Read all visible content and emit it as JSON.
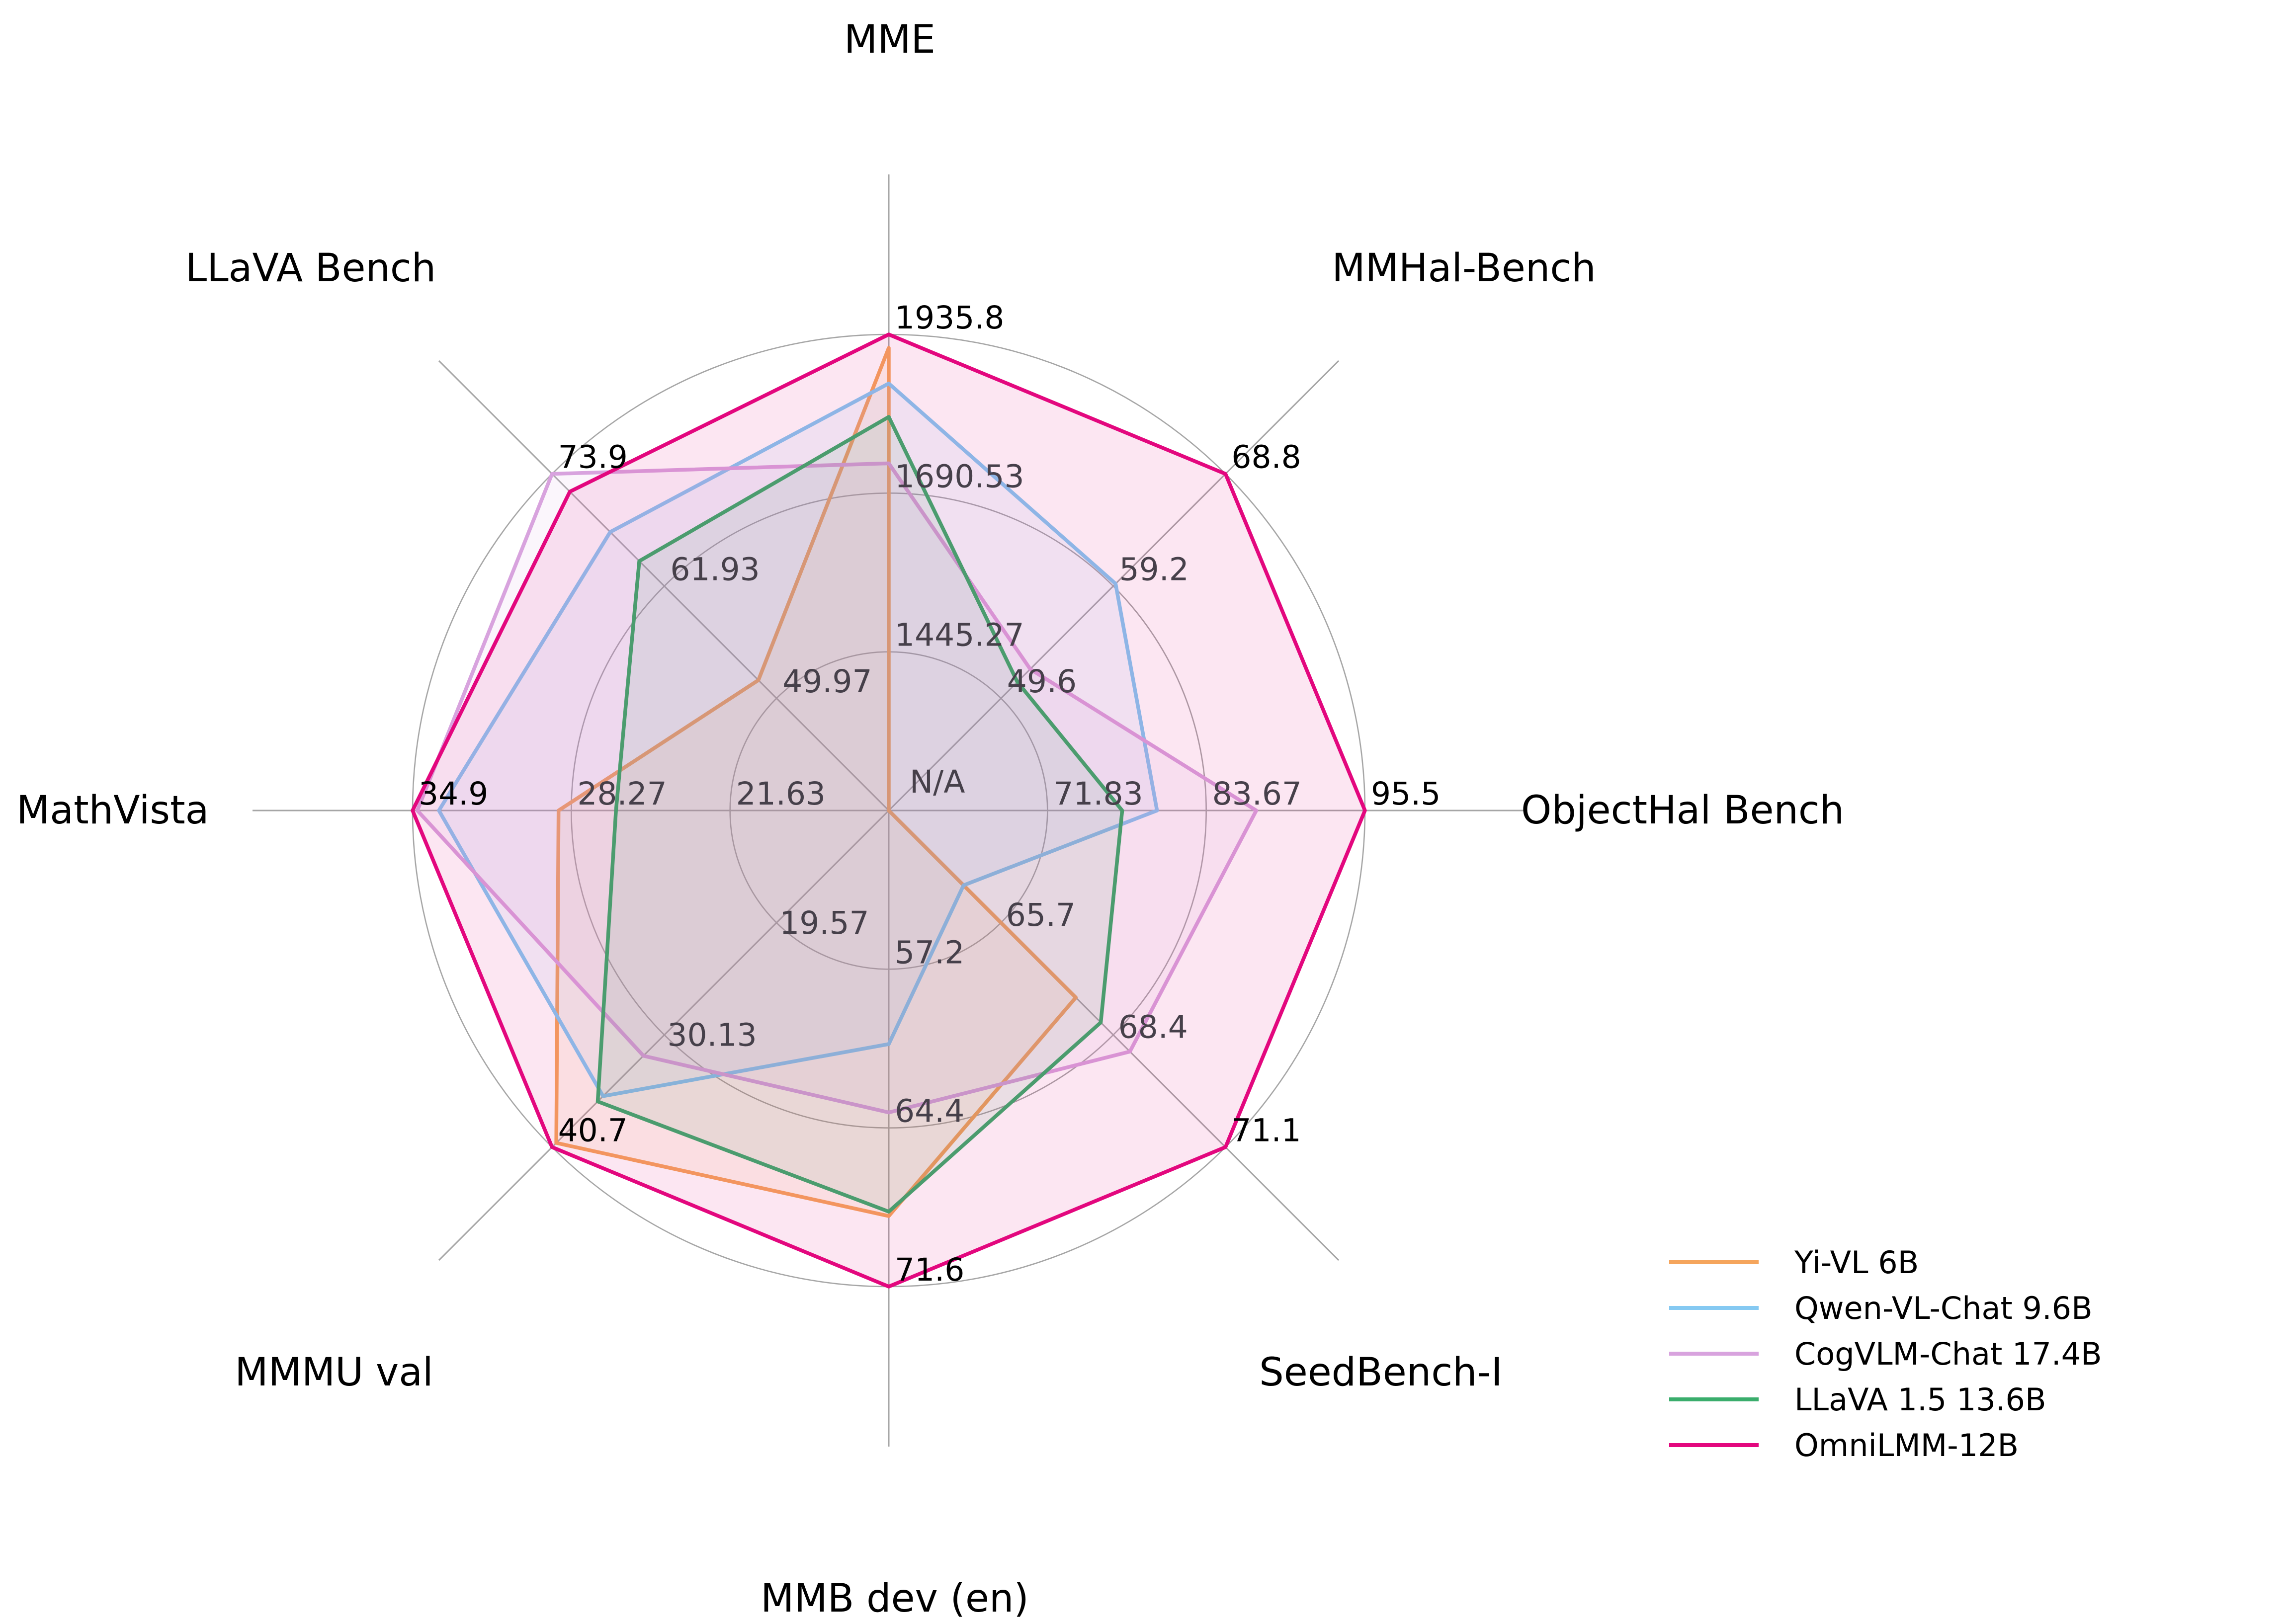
{
  "chart_data": {
    "type": "radar",
    "description": "Radar chart comparing multimodal LLM benchmark scores",
    "axes": [
      {
        "label": "MME",
        "min": 1200,
        "max": 1935.8,
        "ticks": [
          "1445.27",
          "1690.53",
          "1935.8"
        ]
      },
      {
        "label": "MMHal-Bench",
        "min": 40,
        "max": 68.8,
        "ticks": [
          "49.6",
          "59.2",
          "68.8"
        ]
      },
      {
        "label": "ObjectHal Bench",
        "min": 60,
        "max": 95.5,
        "ticks": [
          "71.83",
          "83.67",
          "95.5"
        ]
      },
      {
        "label": "SeedBench-I",
        "min": 63,
        "max": 71.1,
        "ticks": [
          "65.7",
          "68.4",
          "71.1"
        ]
      },
      {
        "label": "MMB dev (en)",
        "min": 50,
        "max": 71.6,
        "ticks": [
          "57.2",
          "64.4",
          "71.6"
        ]
      },
      {
        "label": "MMMU val",
        "min": 9,
        "max": 40.7,
        "ticks": [
          "19.57",
          "30.13",
          "40.7"
        ]
      },
      {
        "label": "MathVista",
        "min": 15,
        "max": 34.9,
        "ticks": [
          "21.63",
          "28.27",
          "34.9"
        ]
      },
      {
        "label": "LLaVA Bench",
        "min": 38,
        "max": 73.9,
        "ticks": [
          "49.97",
          "61.93",
          "73.9"
        ]
      }
    ],
    "center_label": "N/A",
    "series": [
      {
        "name": "Yi-VL 6B",
        "color": "#F5A55C",
        "values": [
          1915.1,
          null,
          null,
          67.5,
          68.4,
          40.3,
          28.8,
          51.9
        ]
      },
      {
        "name": "Qwen-VL-Chat 9.6B",
        "color": "#85C9F2",
        "values": [
          1860.0,
          59.4,
          80.0,
          64.8,
          60.6,
          35.9,
          33.8,
          67.7
        ]
      },
      {
        "name": "CogVLM-Chat 17.4B",
        "color": "#D8A3DE",
        "values": [
          1736.6,
          52.1,
          87.4,
          68.8,
          63.7,
          32.1,
          34.7,
          73.9
        ]
      },
      {
        "name": "LLaVA 1.5 13.6B",
        "color": "#3AAD6C",
        "values": [
          1808.4,
          51.0,
          77.4,
          68.1,
          68.2,
          36.4,
          26.4,
          64.6
        ]
      },
      {
        "name": "OmniLMM-12B",
        "color": "#E3077E",
        "values": [
          1935.8,
          68.8,
          95.5,
          71.1,
          71.6,
          40.7,
          34.9,
          72.0
        ]
      }
    ],
    "legend_position": "lower right",
    "grid": true,
    "n_grid_rings": 3,
    "colors": {
      "background": "#ffffff",
      "grid": "#A6A6A6",
      "tick_label": "#46404A",
      "outer_label": "#000000",
      "axis_label": "#000000"
    }
  }
}
